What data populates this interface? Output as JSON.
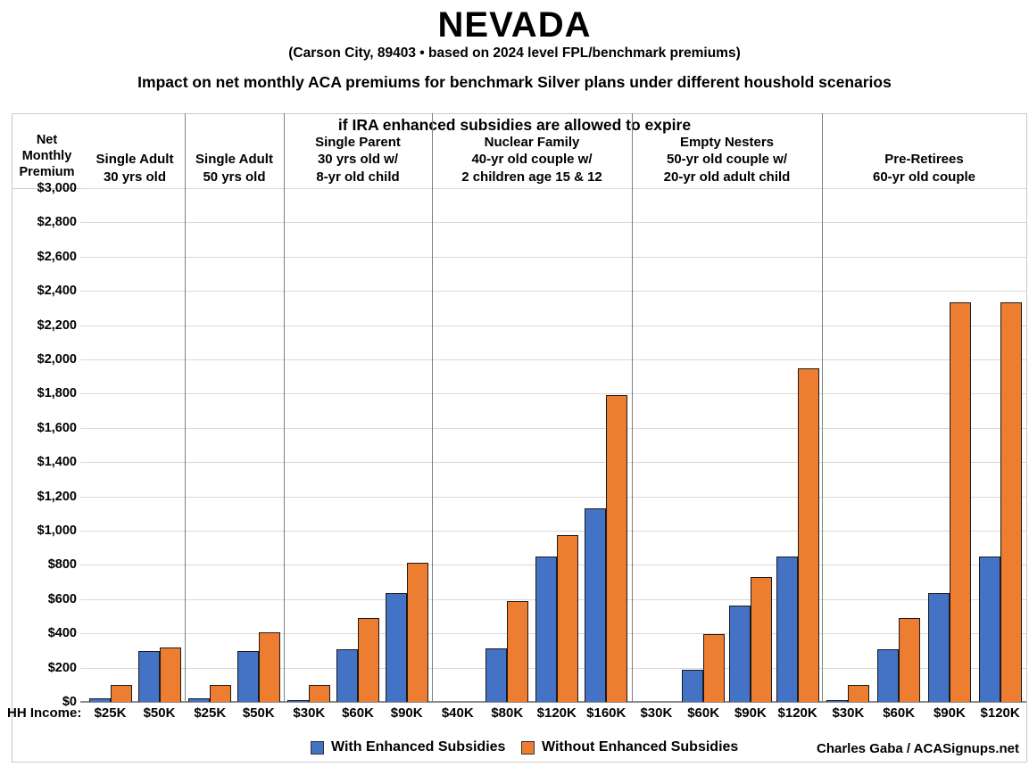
{
  "title": "NEVADA",
  "subtitle": "(Carson City, 89403 • based on 2024 level FPL/benchmark premiums)",
  "description_line1": "Impact on net monthly ACA premiums for benchmark Silver plans under different houshold scenarios",
  "description_line2": "if IRA enhanced subsidies are allowed to expire",
  "credit": "Charles Gaba / ACASignups.net",
  "chart_data": {
    "type": "bar",
    "title": "NEVADA",
    "subtitle": "(Carson City, 89403 • based on 2024 level FPL/benchmark premiums)",
    "ylabel": "Net\nMonthly\nPremium",
    "xlabel_prefix": "HH Income:",
    "ylim": [
      0,
      3000
    ],
    "ytick_step": 200,
    "ytick_labels": [
      "$0",
      "$200",
      "$400",
      "$600",
      "$800",
      "$1,000",
      "$1,200",
      "$1,400",
      "$1,600",
      "$1,800",
      "$2,000",
      "$2,200",
      "$2,400",
      "$2,600",
      "$2,800",
      "$3,000"
    ],
    "grid": true,
    "legend_position": "bottom",
    "series": [
      {
        "name": "With Enhanced Subsidies",
        "color": "#4472C4"
      },
      {
        "name": "Without Enhanced Subsidies",
        "color": "#ED7D31"
      }
    ],
    "groups": [
      {
        "label": "Single Adult\n30 yrs old",
        "incomes": [
          "$25K",
          "$50K"
        ],
        "with_enhanced": [
          20,
          295
        ],
        "without_enhanced": [
          100,
          320
        ]
      },
      {
        "label": "Single Adult\n50 yrs old",
        "incomes": [
          "$25K",
          "$50K"
        ],
        "with_enhanced": [
          20,
          295
        ],
        "without_enhanced": [
          100,
          405
        ]
      },
      {
        "label": "Single Parent\n30 yrs old w/\n8-yr old child",
        "incomes": [
          "$30K",
          "$60K",
          "$90K"
        ],
        "with_enhanced": [
          5,
          305,
          635
        ],
        "without_enhanced": [
          100,
          490,
          815
        ]
      },
      {
        "label": "Nuclear Family\n40-yr old couple w/\n2 children age 15 & 12",
        "incomes": [
          "$40K",
          "$80K",
          "$120K",
          "$160K"
        ],
        "with_enhanced": [
          0,
          310,
          850,
          1130
        ],
        "without_enhanced": [
          0,
          590,
          975,
          1790
        ]
      },
      {
        "label": "Empty Nesters\n50-yr old couple w/\n20-yr old adult child",
        "incomes": [
          "$30K",
          "$60K",
          "$90K",
          "$120K"
        ],
        "with_enhanced": [
          0,
          185,
          565,
          850
        ],
        "without_enhanced": [
          0,
          395,
          730,
          1950
        ]
      },
      {
        "label": "Pre-Retirees\n60-yr old couple",
        "incomes": [
          "$30K",
          "$60K",
          "$90K",
          "$120K"
        ],
        "with_enhanced": [
          10,
          305,
          635,
          850
        ],
        "without_enhanced": [
          100,
          490,
          2335,
          2335
        ]
      }
    ]
  }
}
